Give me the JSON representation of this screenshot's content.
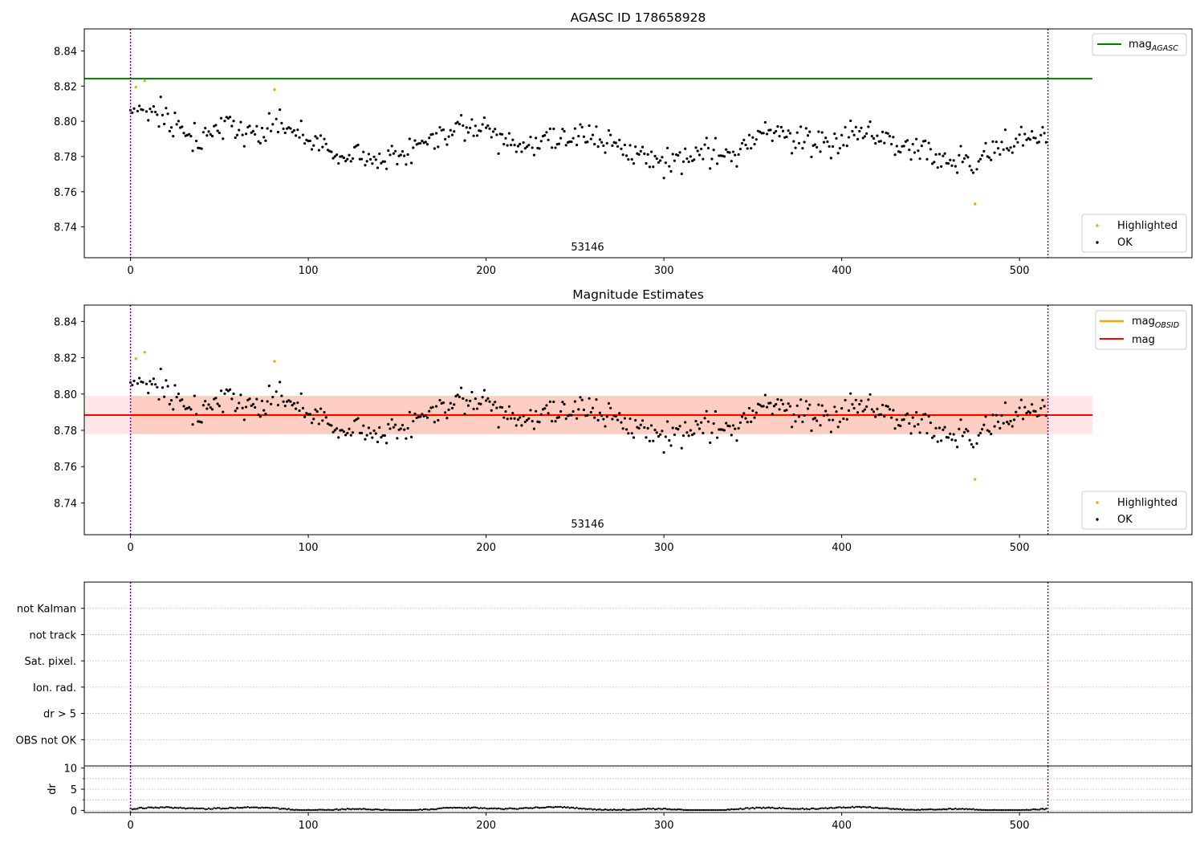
{
  "chart_data": [
    {
      "type": "scatter",
      "title": "AGASC ID 178658928",
      "xlabel": "",
      "ylabel": "",
      "xlim": [
        -26,
        597
      ],
      "ylim": [
        8.7225,
        8.8525
      ],
      "xticks": [
        0,
        100,
        200,
        300,
        400,
        500
      ],
      "yticks": [
        8.74,
        8.76,
        8.78,
        8.8,
        8.82,
        8.84
      ],
      "ytick_format": 2,
      "grid": false,
      "annotation": "53146",
      "annotation_x": 258,
      "observation_bounds": [
        0,
        516
      ],
      "horizontal_lines": [
        {
          "name": "mag",
          "subscript": "AGASC",
          "value": 8.8243,
          "x_range": [
            -26,
            541
          ],
          "color": "#008000"
        }
      ],
      "series": [
        {
          "name": "Highlighted",
          "color": "#ffa500",
          "x": [
            3,
            8,
            81,
            475
          ],
          "y": [
            8.8195,
            8.823,
            8.818,
            8.753
          ]
        },
        {
          "name": "OK",
          "color": "#000000",
          "n_points": 516,
          "mean": 8.788
        }
      ],
      "legend_upper": "top-right",
      "legend_lower": "bottom-right"
    },
    {
      "type": "scatter",
      "title": "Magnitude Estimates",
      "xlabel": "",
      "ylabel": "",
      "xlim": [
        -26,
        597
      ],
      "ylim": [
        8.7225,
        8.849
      ],
      "xticks": [
        0,
        100,
        200,
        300,
        400,
        500
      ],
      "yticks": [
        8.74,
        8.76,
        8.78,
        8.8,
        8.82,
        8.84
      ],
      "ytick_format": 2,
      "grid": false,
      "annotation": "53146",
      "annotation_x": 258,
      "observation_bounds": [
        0,
        516
      ],
      "bands": [
        {
          "color": "#ffb6c1",
          "opacity": 0.35,
          "x_range": [
            -26,
            541
          ],
          "y_range": [
            8.7779,
            8.799
          ]
        },
        {
          "color": "#ffa07a",
          "opacity": 0.35,
          "x_range": [
            0,
            516
          ],
          "y_range": [
            8.7779,
            8.799
          ]
        }
      ],
      "horizontal_lines": [
        {
          "name": "mag",
          "subscript": "OBSID",
          "value": 8.7884,
          "x_range": [
            0,
            516
          ],
          "color": "#ffa500"
        },
        {
          "name": "mag",
          "subscript": "",
          "value": 8.7884,
          "x_range": [
            -26,
            541
          ],
          "color": "#ff0000"
        }
      ],
      "series": [
        {
          "name": "Highlighted",
          "color": "#ffa500",
          "x": [
            3,
            8,
            81,
            475
          ],
          "y": [
            8.8195,
            8.823,
            8.818,
            8.753
          ]
        },
        {
          "name": "OK",
          "color": "#000000",
          "n_points": 516,
          "mean": 8.788
        }
      ],
      "legend_upper": "top-right",
      "legend_lower": "bottom-right"
    },
    {
      "type": "scatter",
      "title": "",
      "xlim": [
        -26,
        597
      ],
      "flag_labels": [
        "OBS not OK",
        "dr > 5",
        "Ion. rad.",
        "Sat. pixel.",
        "not track",
        "not Kalman"
      ],
      "flag_points": [],
      "grid": true,
      "observation_bounds": [
        0,
        516
      ]
    },
    {
      "type": "scatter",
      "title": "",
      "xlabel": "",
      "ylabel": "dr",
      "xlim": [
        -26,
        597
      ],
      "ylim": [
        -0.5,
        10.5
      ],
      "xticks": [
        0,
        100,
        200,
        300,
        400,
        500
      ],
      "yticks": [
        0,
        5,
        10
      ],
      "ytick_format": 0,
      "grid": true,
      "observation_bounds": [
        0,
        516
      ],
      "series": [
        {
          "name": "dr",
          "color": "#000000",
          "n_points": 516,
          "range": [
            0.1,
            1.0
          ]
        }
      ]
    }
  ],
  "legend": {
    "mag_agasc_main": "mag",
    "mag_agasc_sub": "AGASC",
    "mag_obsid_main": "mag",
    "mag_obsid_sub": "OBSID",
    "mag": "mag",
    "highlighted": "Highlighted",
    "ok": "OK"
  },
  "colors": {
    "obs_bound": "#800080",
    "axis": "#000000",
    "grid": "#b0b0b0"
  }
}
